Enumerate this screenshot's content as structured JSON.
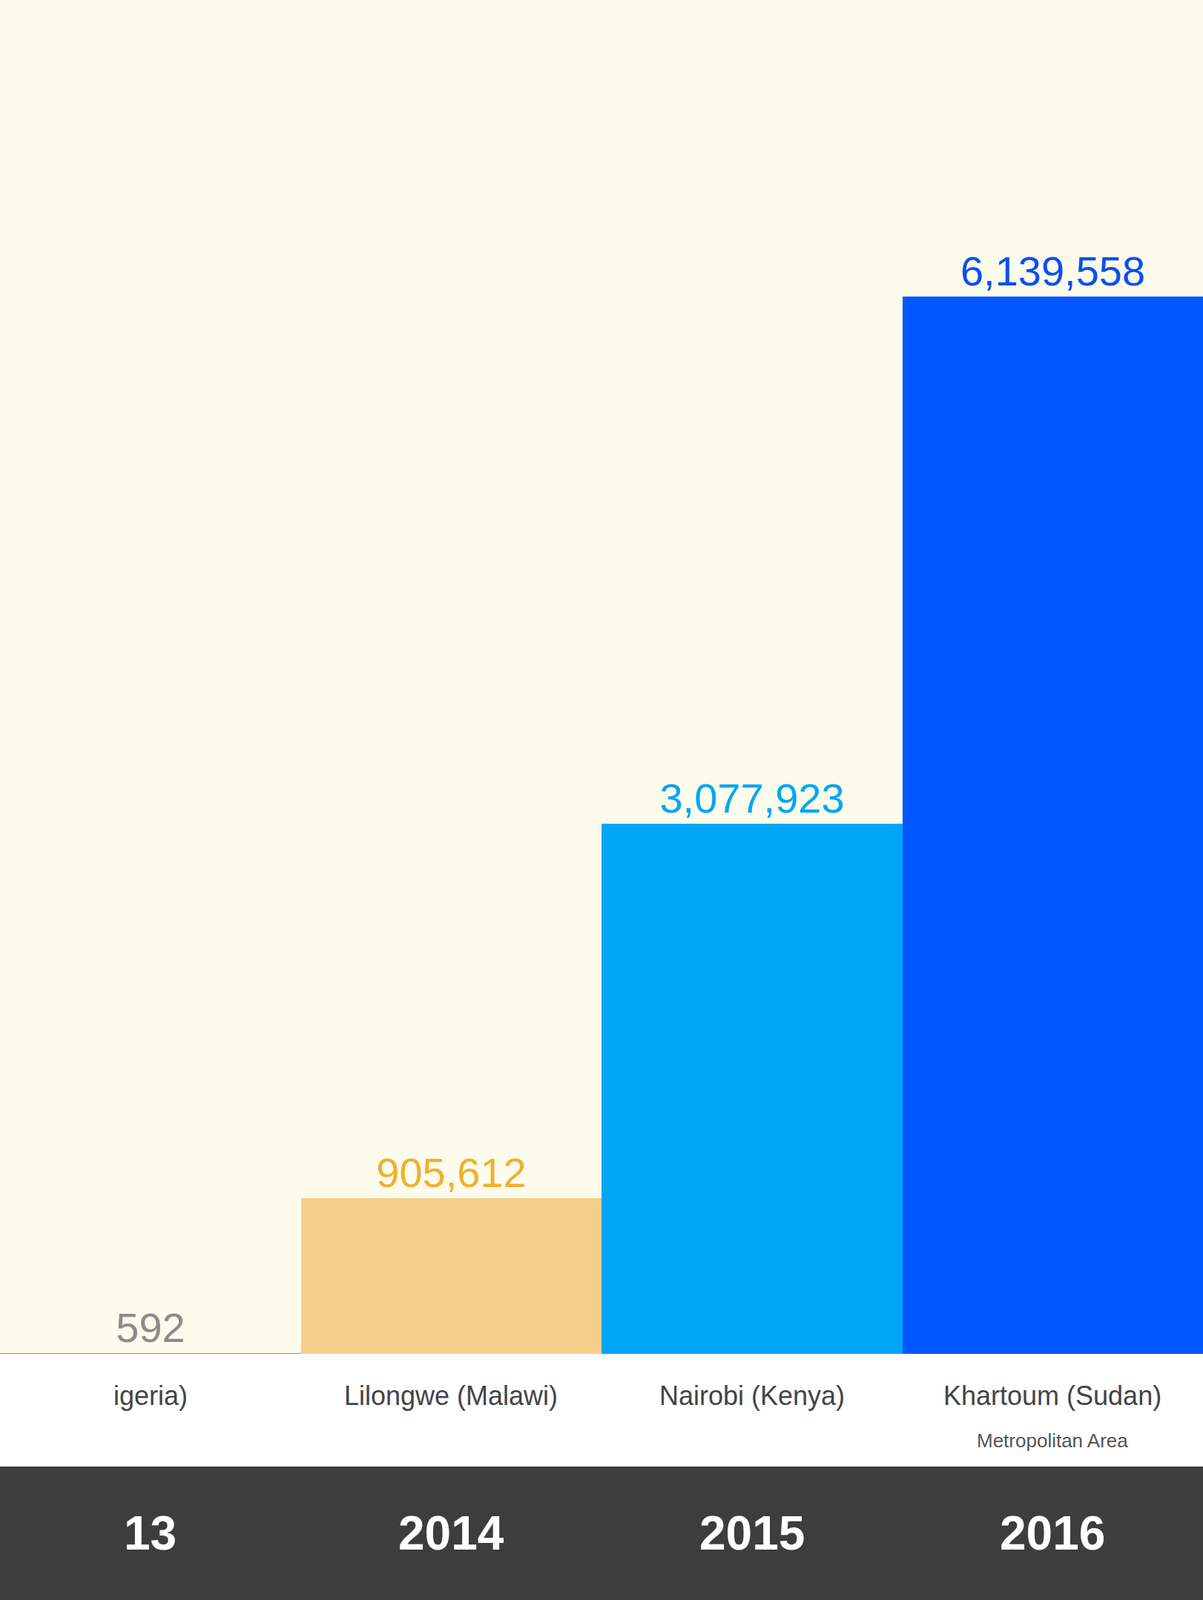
{
  "chart_data": {
    "type": "bar",
    "categories": [
      "13",
      "2014",
      "2015",
      "2016"
    ],
    "values": [
      592,
      905612,
      3077923,
      6139558
    ],
    "value_labels": [
      "592",
      "905,612",
      "3,077,923",
      "6,139,558"
    ],
    "colors": [
      "#8c8c8c",
      "#f5cf8a",
      "#00a6f5",
      "#0057ff"
    ],
    "data_labels": true,
    "annotations": [
      {
        "category": "13",
        "text": "igeria)"
      },
      {
        "category": "2014",
        "text": "Lilongwe (Malawi)"
      },
      {
        "category": "2015",
        "text": "Nairobi (Kenya)"
      },
      {
        "category": "2016",
        "text": "Khartoum (Sudan)",
        "subtext": "Metropolitan Area"
      }
    ],
    "ylim": [
      0,
      7000000
    ],
    "tick_labels": false,
    "grid": false
  }
}
